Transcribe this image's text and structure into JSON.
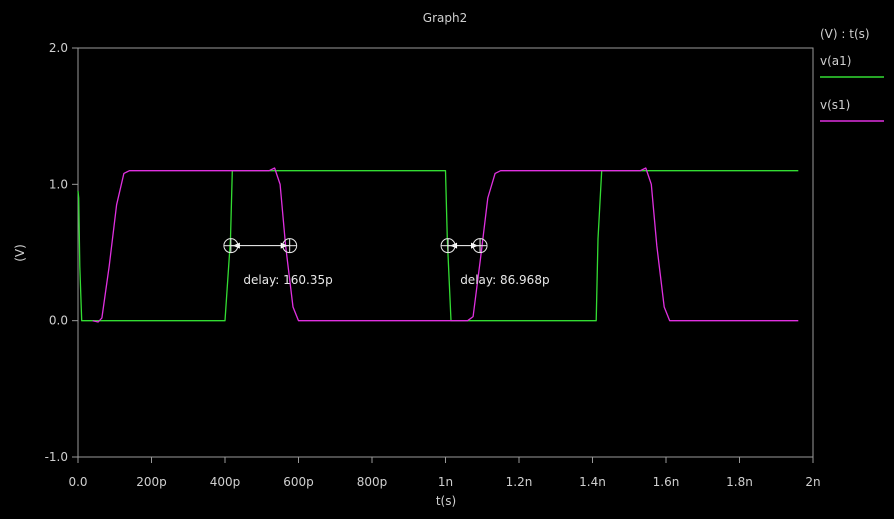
{
  "chart_data": {
    "type": "line",
    "title": "Graph2",
    "xlabel": "t(s)",
    "ylabel": "(V)",
    "legend_header": "(V) : t(s)",
    "legend_placement": "right",
    "xlim": [
      0,
      2
    ],
    "ylim": [
      -1,
      2
    ],
    "x_unit": "ns",
    "xticks": [
      {
        "value": 0,
        "label": "0.0"
      },
      {
        "value": 0.2,
        "label": "200p"
      },
      {
        "value": 0.4,
        "label": "400p"
      },
      {
        "value": 0.6,
        "label": "600p"
      },
      {
        "value": 0.8,
        "label": "800p"
      },
      {
        "value": 1.0,
        "label": "1n"
      },
      {
        "value": 1.2,
        "label": "1.2n"
      },
      {
        "value": 1.4,
        "label": "1.4n"
      },
      {
        "value": 1.6,
        "label": "1.6n"
      },
      {
        "value": 1.8,
        "label": "1.8n"
      },
      {
        "value": 2.0,
        "label": "2n"
      }
    ],
    "yticks": [
      {
        "value": 2.0,
        "label": "2.0"
      },
      {
        "value": 1.0,
        "label": "1.0"
      },
      {
        "value": 0.0,
        "label": "0.0"
      },
      {
        "value": -1.0,
        "label": "-1.0"
      }
    ],
    "grid": false,
    "series": [
      {
        "name": "v(a1)",
        "color": "#33dd33",
        "x": [
          0,
          0.002,
          0.005,
          0.01,
          0.4,
          0.415,
          0.42,
          1.0,
          1.005,
          1.015,
          1.41,
          1.415,
          1.425,
          1.96
        ],
        "y": [
          0.95,
          0.9,
          0.4,
          0.0,
          0.0,
          0.6,
          1.1,
          1.1,
          0.6,
          0.0,
          0.0,
          0.6,
          1.1,
          1.1
        ]
      },
      {
        "name": "v(s1)",
        "color": "#e030e0",
        "x": [
          0.04,
          0.055,
          0.065,
          0.085,
          0.105,
          0.125,
          0.14,
          0.52,
          0.535,
          0.55,
          0.565,
          0.585,
          0.6,
          1.06,
          1.075,
          1.095,
          1.115,
          1.135,
          1.15,
          1.53,
          1.545,
          1.56,
          1.575,
          1.595,
          1.61,
          1.96
        ],
        "y": [
          0.0,
          -0.01,
          0.02,
          0.4,
          0.85,
          1.08,
          1.1,
          1.1,
          1.12,
          1.0,
          0.55,
          0.1,
          0.0,
          0.0,
          0.03,
          0.45,
          0.9,
          1.08,
          1.1,
          1.1,
          1.12,
          1.0,
          0.55,
          0.1,
          0.0,
          0.0
        ]
      }
    ],
    "annotations": [
      {
        "label": "delay: 160.35p",
        "x_start": 0.416,
        "x_end": 0.576,
        "y": 0.55,
        "text_x": 0.45,
        "text_y": 0.27
      },
      {
        "label": "delay: 86.968p",
        "x_start": 1.007,
        "x_end": 1.094,
        "y": 0.55,
        "text_x": 1.04,
        "text_y": 0.27
      }
    ]
  }
}
